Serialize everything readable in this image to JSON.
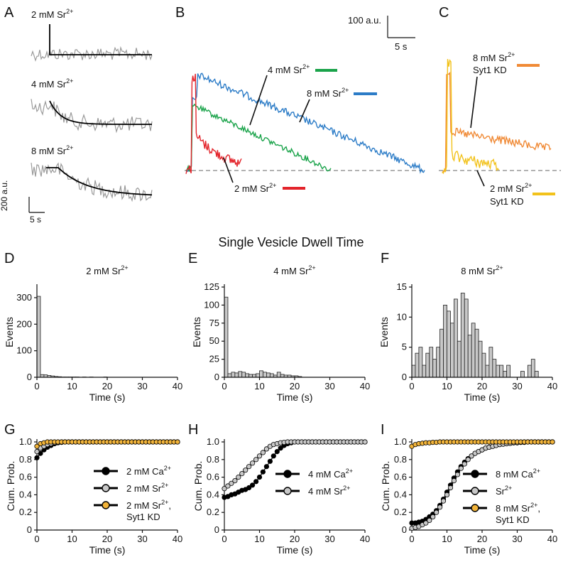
{
  "figure_title": "Single Vesicle Dwell Time",
  "colors": {
    "sr2": "#e3242b",
    "sr4": "#1aa34a",
    "sr8": "#2c7cc7",
    "kd8": "#f08a36",
    "kd2": "#f2c21b",
    "trace_gray": "#9a9a9a",
    "bar_gray": "#c8c8c8"
  },
  "top_row": {
    "panel_a": {
      "label": "A",
      "traces": [
        {
          "name": "2 mM Sr",
          "sup": "2+"
        },
        {
          "name": "4 mM Sr",
          "sup": "2+"
        },
        {
          "name": "8 mM Sr",
          "sup": "2+"
        }
      ],
      "scale_y": "200 a.u.",
      "scale_x": "5 s"
    },
    "panel_b": {
      "label": "B",
      "scale_y": "100 a.u.",
      "scale_x": "5 s",
      "legend": [
        {
          "name": "4 mM Sr",
          "sup": "2+",
          "color": "#1aa34a"
        },
        {
          "name": "8 mM Sr",
          "sup": "2+",
          "color": "#2c7cc7"
        },
        {
          "name": "2 mM Sr",
          "sup": "2+",
          "color": "#e3242b"
        }
      ]
    },
    "panel_c": {
      "label": "C",
      "legend": [
        {
          "line1": "8 mM Sr",
          "sup": "2+",
          "line2": "Syt1 KD",
          "color": "#f08a36"
        },
        {
          "line1": "2 mM Sr",
          "sup": "2+",
          "line2": "Syt1 KD",
          "color": "#f2c21b"
        }
      ]
    }
  },
  "chart_data": [
    {
      "id": "D",
      "type": "bar",
      "title": "2 mM Sr",
      "title_sup": "2+",
      "xlabel": "Time (s)",
      "ylabel": "Events",
      "xlim": [
        0,
        40
      ],
      "ylim": [
        0,
        340
      ],
      "bin_width": 1,
      "xticks": [
        0,
        10,
        20,
        30,
        40
      ],
      "yticks": [
        0,
        100,
        200,
        300
      ],
      "values": [
        305,
        10,
        9,
        7,
        5,
        3,
        2,
        1,
        1,
        1,
        1,
        1,
        0,
        1,
        0,
        1,
        0,
        0,
        0,
        1
      ]
    },
    {
      "id": "E",
      "type": "bar",
      "title": "4 mM Sr",
      "title_sup": "2+",
      "xlabel": "Time (s)",
      "ylabel": "Events",
      "xlim": [
        0,
        40
      ],
      "ylim": [
        0,
        125
      ],
      "bin_width": 1,
      "xticks": [
        0,
        10,
        20,
        30,
        40
      ],
      "yticks": [
        0,
        25,
        50,
        75,
        100,
        125
      ],
      "values": [
        111,
        5,
        7,
        6,
        8,
        7,
        5,
        4,
        4,
        5,
        9,
        7,
        6,
        5,
        3,
        7,
        4,
        3,
        3,
        2,
        2,
        1
      ]
    },
    {
      "id": "F",
      "type": "bar",
      "title": "8 mM Sr",
      "title_sup": "2+",
      "xlabel": "Time (s)",
      "ylabel": "Events",
      "xlim": [
        0,
        40
      ],
      "ylim": [
        0,
        15
      ],
      "bin_width": 1,
      "xticks": [
        0,
        10,
        20,
        30,
        40
      ],
      "yticks": [
        0,
        5,
        10,
        15
      ],
      "values": [
        2,
        4,
        5,
        2,
        4,
        5,
        3,
        5,
        8,
        12,
        11,
        9,
        13,
        6,
        14,
        13,
        7,
        9,
        8,
        6,
        4,
        2,
        5,
        3,
        2,
        2,
        1,
        2,
        0,
        0,
        0,
        1,
        0,
        2,
        3,
        1
      ]
    },
    {
      "id": "G",
      "type": "line",
      "xlabel": "Time (s)",
      "ylabel": "Cum. Prob.",
      "xlim": [
        0,
        40
      ],
      "ylim": [
        0,
        1
      ],
      "xticks": [
        0,
        10,
        20,
        30,
        40
      ],
      "yticks": [
        "0",
        "0.2",
        "0.4",
        "0.6",
        "0.8",
        "1.0"
      ],
      "x": [
        0,
        1,
        2,
        3,
        4,
        5,
        6,
        7,
        8,
        9,
        10,
        11,
        12,
        13,
        14,
        15,
        16,
        17,
        18,
        19,
        20,
        21,
        22,
        23,
        24,
        25,
        26,
        27,
        28,
        29,
        30,
        31,
        32,
        33,
        34,
        35,
        36,
        37,
        38,
        39,
        40
      ],
      "series": [
        {
          "name": "2 mM Ca",
          "sup": "2+",
          "line2": "",
          "color": "#000000",
          "values": [
            0.82,
            0.87,
            0.91,
            0.94,
            0.96,
            0.98,
            0.99,
            0.995,
            1,
            1,
            1,
            1,
            1,
            1,
            1,
            1,
            1,
            1,
            1,
            1,
            1,
            1,
            1,
            1,
            1,
            1,
            1,
            1,
            1,
            1,
            1,
            1,
            1,
            1,
            1,
            1,
            1,
            1,
            1,
            1,
            1
          ]
        },
        {
          "name": "2 mM Sr",
          "sup": "2+",
          "line2": "",
          "color": "#c8c8c8",
          "values": [
            0.89,
            0.93,
            0.95,
            0.97,
            0.98,
            0.99,
            0.995,
            1,
            1,
            1,
            1,
            1,
            1,
            1,
            1,
            1,
            1,
            1,
            1,
            1,
            1,
            1,
            1,
            1,
            1,
            1,
            1,
            1,
            1,
            1,
            1,
            1,
            1,
            1,
            1,
            1,
            1,
            1,
            1,
            1,
            1
          ]
        },
        {
          "name": "2 mM Sr",
          "sup": "2+",
          "line2": "Syt1 KD",
          "color": "#f2b43a",
          "values": [
            0.95,
            0.98,
            0.99,
            1,
            1,
            1,
            1,
            1,
            1,
            1,
            1,
            1,
            1,
            1,
            1,
            1,
            1,
            1,
            1,
            1,
            1,
            1,
            1,
            1,
            1,
            1,
            1,
            1,
            1,
            1,
            1,
            1,
            1,
            1,
            1,
            1,
            1,
            1,
            1,
            1,
            1
          ]
        }
      ]
    },
    {
      "id": "H",
      "type": "line",
      "xlabel": "Time (s)",
      "ylabel": "Cum. Prob.",
      "xlim": [
        0,
        40
      ],
      "ylim": [
        0,
        1
      ],
      "xticks": [
        0,
        10,
        20,
        30,
        40
      ],
      "yticks": [
        "0",
        "0.2",
        "0.4",
        "0.6",
        "0.8",
        "1.0"
      ],
      "x": [
        0,
        1,
        2,
        3,
        4,
        5,
        6,
        7,
        8,
        9,
        10,
        11,
        12,
        13,
        14,
        15,
        16,
        17,
        18,
        19,
        20,
        21,
        22,
        23,
        24,
        25,
        26,
        27,
        28,
        29,
        30,
        31,
        32,
        33,
        34,
        35,
        36,
        37,
        38,
        39,
        40
      ],
      "series": [
        {
          "name": "4 mM Ca",
          "sup": "2+",
          "line2": "",
          "color": "#000000",
          "values": [
            0.37,
            0.38,
            0.4,
            0.41,
            0.43,
            0.45,
            0.46,
            0.48,
            0.51,
            0.55,
            0.6,
            0.66,
            0.72,
            0.78,
            0.84,
            0.89,
            0.93,
            0.96,
            0.98,
            0.99,
            1,
            1,
            1,
            1,
            1,
            1,
            1,
            1,
            1,
            1,
            1,
            1,
            1,
            1,
            1,
            1,
            1,
            1,
            1,
            1,
            1
          ]
        },
        {
          "name": "4 mM Sr",
          "sup": "2+",
          "line2": "",
          "color": "#c8c8c8",
          "values": [
            0.47,
            0.5,
            0.53,
            0.56,
            0.6,
            0.64,
            0.68,
            0.72,
            0.76,
            0.8,
            0.84,
            0.88,
            0.92,
            0.95,
            0.97,
            0.98,
            0.99,
            0.995,
            1,
            1,
            1,
            1,
            1,
            1,
            1,
            1,
            1,
            1,
            1,
            1,
            1,
            1,
            1,
            1,
            1,
            1,
            1,
            1,
            1,
            1,
            1
          ]
        }
      ]
    },
    {
      "id": "I",
      "type": "line",
      "xlabel": "Time (s)",
      "ylabel": "Cum. Prob.",
      "xlim": [
        0,
        40
      ],
      "ylim": [
        0,
        1
      ],
      "xticks": [
        0,
        10,
        20,
        30,
        40
      ],
      "yticks": [
        "0",
        "0.2",
        "0.4",
        "0.6",
        "0.8",
        "1.0"
      ],
      "x": [
        0,
        1,
        2,
        3,
        4,
        5,
        6,
        7,
        8,
        9,
        10,
        11,
        12,
        13,
        14,
        15,
        16,
        17,
        18,
        19,
        20,
        21,
        22,
        23,
        24,
        25,
        26,
        27,
        28,
        29,
        30,
        31,
        32,
        33,
        34,
        35,
        36,
        37,
        38,
        39,
        40
      ],
      "series": [
        {
          "name": "8 mM Ca",
          "sup": "2+",
          "line2": "",
          "color": "#000000",
          "values": [
            0.08,
            0.08,
            0.09,
            0.1,
            0.12,
            0.15,
            0.18,
            0.22,
            0.28,
            0.35,
            0.43,
            0.51,
            0.59,
            0.66,
            0.72,
            0.77,
            0.81,
            0.84,
            0.87,
            0.89,
            0.91,
            0.93,
            0.94,
            0.95,
            0.96,
            0.97,
            0.975,
            0.98,
            0.985,
            0.99,
            0.99,
            0.995,
            0.995,
            1,
            1,
            1,
            1,
            1,
            1,
            1,
            1
          ]
        },
        {
          "name": "Sr",
          "sup": "2+",
          "line2": "",
          "color": "#c8c8c8",
          "values": [
            0.02,
            0.03,
            0.04,
            0.06,
            0.08,
            0.11,
            0.15,
            0.2,
            0.26,
            0.33,
            0.4,
            0.48,
            0.56,
            0.63,
            0.7,
            0.75,
            0.8,
            0.84,
            0.87,
            0.89,
            0.91,
            0.93,
            0.94,
            0.95,
            0.96,
            0.97,
            0.975,
            0.98,
            0.985,
            0.99,
            0.99,
            0.995,
            1,
            1,
            1,
            1,
            1,
            1,
            1,
            1,
            1
          ]
        },
        {
          "name": "8 mM Sr",
          "sup": "2+",
          "line2": "Syt1 KD",
          "color": "#f2b43a",
          "values": [
            0.95,
            0.97,
            0.98,
            0.985,
            0.99,
            0.99,
            0.995,
            0.995,
            1,
            1,
            1,
            1,
            1,
            1,
            1,
            1,
            1,
            1,
            1,
            1,
            1,
            1,
            1,
            1,
            1,
            1,
            1,
            1,
            1,
            1,
            1,
            1,
            1,
            1,
            1,
            1,
            1,
            1,
            1,
            1,
            1
          ]
        }
      ]
    }
  ]
}
